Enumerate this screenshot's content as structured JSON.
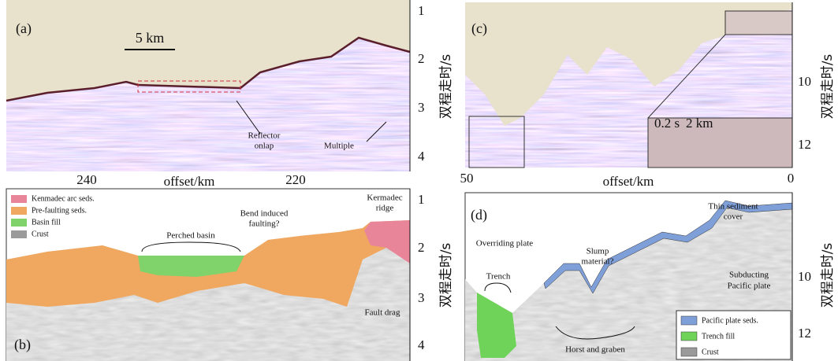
{
  "panel_a": {
    "label": "(a)",
    "scale_bar": "5 km",
    "reflector_onlap": [
      "Reflector",
      "onlap"
    ],
    "multiple": "Multiple",
    "x_ticks": [
      "240",
      "220"
    ],
    "x_label": "offset/km",
    "y_ticks": [
      "1",
      "2",
      "3",
      "4"
    ],
    "y_label": "双程走时/s"
  },
  "panel_c": {
    "label": "(c)",
    "inset_scale_time": "0.2 s",
    "inset_scale_distance": "2 km",
    "x_ticks": [
      "50",
      "0"
    ],
    "x_label": "offset/km",
    "y_ticks": [
      "10",
      "12"
    ],
    "y_label": "双程走时/s"
  },
  "panel_b": {
    "label": "(b)",
    "legend": [
      "Kenmadec arc seds.",
      "Pre-faulting seds.",
      "Basin fill",
      "Crust"
    ],
    "perched_basin": "Perched basin",
    "bend_faulting": [
      "Bend induced",
      "faulting?"
    ],
    "kermadec_ridge": [
      "Kermadec",
      "ridge"
    ],
    "fault_drag": "Fault drag",
    "y_ticks": [
      "1",
      "2",
      "3",
      "4"
    ],
    "y_label": "双程走时/s"
  },
  "panel_d": {
    "label": "(d)",
    "thin_sediment": [
      "Thin sediment",
      "cover"
    ],
    "overriding_plate": "Overriding plate",
    "trench": "Trench",
    "slump": [
      "Slump",
      "material?"
    ],
    "horst_graben": "Horst and graben",
    "subducting": [
      "Subducting",
      "Pacific plate"
    ],
    "legend": [
      "Pacific plate seds.",
      "Trench fill",
      "Crust"
    ],
    "y_ticks": [
      "10",
      "12"
    ],
    "y_label": "双程走时/s"
  }
}
